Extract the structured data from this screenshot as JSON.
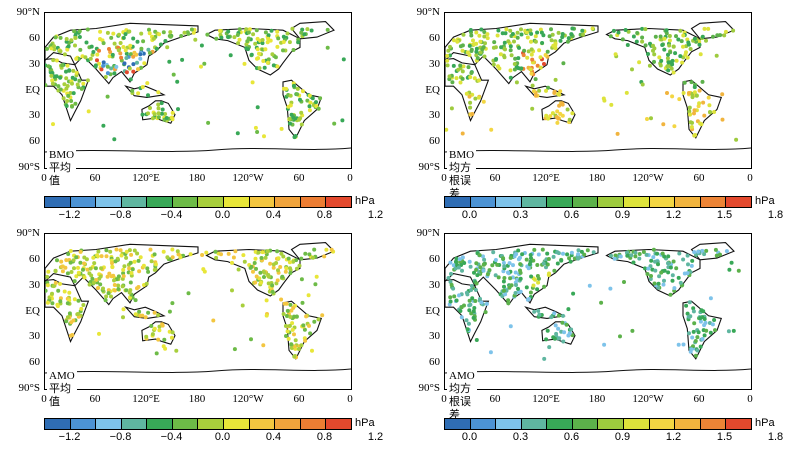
{
  "lat_labels": [
    "90°N",
    "60",
    "30",
    "EQ",
    "30",
    "60",
    "90°S"
  ],
  "lon_labels": [
    "0",
    "60",
    "120°E",
    "180",
    "120°W",
    "60",
    "0"
  ],
  "unit": "hPa",
  "colors_mean": [
    "#2f6db4",
    "#4c93d4",
    "#7ec3ea",
    "#5fb6a0",
    "#38a857",
    "#6dbb47",
    "#a8cf3c",
    "#e8e639",
    "#f3c640",
    "#f0a43c",
    "#ec7d33",
    "#e3492d"
  ],
  "colors_rmse": [
    "#2f6db4",
    "#4c93d4",
    "#7ec3ea",
    "#5fb6a0",
    "#38a857",
    "#5cb14a",
    "#9ecb3e",
    "#dde33b",
    "#f3d643",
    "#f1b43e",
    "#ec8436",
    "#e3492d"
  ],
  "mean_ticks": [
    "−1.2",
    "−0.8",
    "−0.4",
    "0.0",
    "0.4",
    "0.8",
    "1.2"
  ],
  "rmse_ticks": [
    "0.0",
    "0.3",
    "0.6",
    "0.9",
    "1.2",
    "1.5",
    "1.8"
  ],
  "panels": [
    {
      "id": "bmo-mean",
      "title": "BMO平均值",
      "scale": "mean"
    },
    {
      "id": "bmo-rmse",
      "title": "BMO均方根误差",
      "scale": "rmse"
    },
    {
      "id": "amo-mean",
      "title": "AMO平均值",
      "scale": "mean"
    },
    {
      "id": "amo-rmse",
      "title": "AMO均方根误差",
      "scale": "rmse"
    }
  ]
}
